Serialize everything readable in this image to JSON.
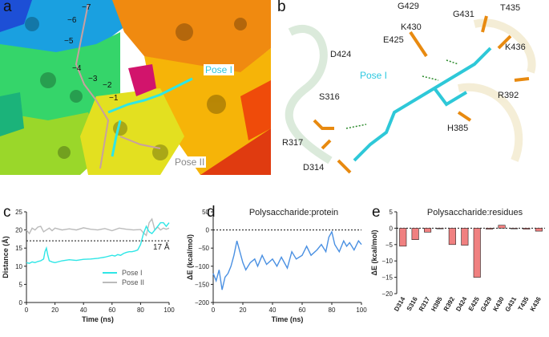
{
  "panel_labels": {
    "a": "a",
    "b": "b",
    "c": "c",
    "d": "d",
    "e": "e"
  },
  "panel_a": {
    "subsite_labels": [
      "−7",
      "−6",
      "−5",
      "−4",
      "−3",
      "−2",
      "−1"
    ],
    "pose1": "Pose I",
    "pose2": "Pose II"
  },
  "panel_b": {
    "residues": [
      "G429",
      "G431",
      "T435",
      "K430",
      "E425",
      "D424",
      "K436",
      "S316",
      "R392",
      "R317",
      "H385",
      "D314"
    ],
    "pose1": "Pose I"
  },
  "chart_data": [
    {
      "type": "line",
      "panel": "c",
      "xlabel": "Time (ns)",
      "ylabel": "Distance (Å)",
      "xlim": [
        0,
        100
      ],
      "ylim": [
        0,
        25
      ],
      "xticks": [
        0,
        20,
        40,
        60,
        80,
        100
      ],
      "yticks": [
        0,
        5,
        10,
        15,
        20,
        25
      ],
      "threshold": 17,
      "threshold_label": "17 Å",
      "legend_position": "bottom-right",
      "series": [
        {
          "name": "Pose I",
          "color": "#2ee6e6",
          "x": [
            0,
            2,
            4,
            6,
            8,
            10,
            12,
            13,
            14,
            15,
            16,
            18,
            20,
            25,
            30,
            35,
            40,
            45,
            50,
            55,
            60,
            62,
            64,
            66,
            68,
            70,
            72,
            74,
            76,
            78,
            80,
            82,
            84,
            86,
            88,
            90,
            92,
            94,
            96,
            98,
            100
          ],
          "y": [
            11,
            10.8,
            11.2,
            11,
            11.3,
            11.5,
            12,
            14,
            15,
            13,
            11.5,
            11.2,
            11,
            11.5,
            11.8,
            11.6,
            11.9,
            12,
            12.2,
            12.5,
            13,
            12.8,
            13.2,
            13,
            13.5,
            13.8,
            14,
            14,
            14.2,
            14.5,
            16,
            19,
            21,
            19.5,
            19,
            20,
            21,
            22,
            22,
            21,
            22
          ]
        },
        {
          "name": "Pose II",
          "color": "#bbbbbb",
          "x": [
            0,
            2,
            4,
            6,
            8,
            10,
            12,
            14,
            16,
            18,
            20,
            25,
            30,
            35,
            40,
            45,
            50,
            55,
            60,
            65,
            70,
            75,
            80,
            82,
            84,
            86,
            88,
            90,
            92,
            94,
            96,
            98,
            100
          ],
          "y": [
            20,
            19,
            20.5,
            20,
            20.8,
            21,
            19.5,
            20,
            20.5,
            19.8,
            20.5,
            20,
            20.3,
            20,
            20.6,
            20.2,
            20,
            20.4,
            19.8,
            20.5,
            20.2,
            20,
            20.1,
            19.2,
            18.5,
            22,
            23,
            20,
            20.8,
            20,
            20.5,
            20.2,
            20.5
          ]
        }
      ]
    },
    {
      "type": "line",
      "panel": "d",
      "title": "Polysaccharide:protein",
      "xlabel": "Time (ns)",
      "ylabel": "ΔE (kcal/mol)",
      "xlim": [
        0,
        100
      ],
      "ylim": [
        -200,
        50
      ],
      "xticks": [
        0,
        20,
        40,
        60,
        80,
        100
      ],
      "yticks": [
        -200,
        -150,
        -100,
        -50,
        0,
        50
      ],
      "zero_line": 0,
      "series": [
        {
          "name": "",
          "color": "#4a90e2",
          "x": [
            0,
            2,
            4,
            6,
            8,
            10,
            12,
            14,
            16,
            18,
            20,
            22,
            25,
            28,
            30,
            33,
            36,
            40,
            43,
            46,
            50,
            53,
            56,
            60,
            63,
            66,
            70,
            73,
            76,
            78,
            80,
            82,
            85,
            88,
            90,
            92,
            95,
            98,
            100
          ],
          "y": [
            -120,
            -140,
            -110,
            -165,
            -130,
            -120,
            -100,
            -70,
            -30,
            -60,
            -90,
            -110,
            -90,
            -80,
            -100,
            -70,
            -95,
            -80,
            -100,
            -75,
            -105,
            -60,
            -80,
            -70,
            -45,
            -70,
            -55,
            -40,
            -60,
            -20,
            -5,
            -40,
            -60,
            -30,
            -45,
            -35,
            -55,
            -30,
            -40
          ]
        }
      ]
    },
    {
      "type": "bar",
      "panel": "e",
      "title": "Polysaccharide:residues",
      "ylabel": "ΔE (kcal/mol)",
      "ylim": [
        -20,
        5
      ],
      "yticks": [
        -20,
        -15,
        -10,
        -5,
        0,
        5
      ],
      "zero_line": 0,
      "bar_color": "#f08080",
      "categories": [
        "D314",
        "S316",
        "R317",
        "H385",
        "R392",
        "D424",
        "E425",
        "G429",
        "K430",
        "G431",
        "T435",
        "K436"
      ],
      "values": [
        -5.5,
        -3.5,
        -1.2,
        -0.2,
        -5.0,
        -5.2,
        -15.0,
        -0.3,
        0.9,
        -0.2,
        -0.3,
        -0.9
      ]
    }
  ]
}
